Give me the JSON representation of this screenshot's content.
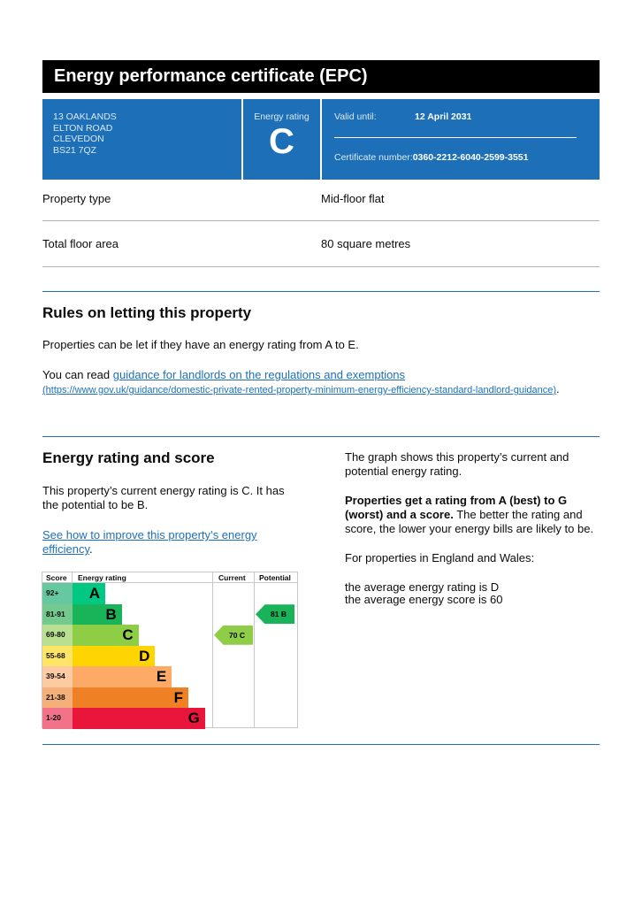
{
  "title": "Energy performance certificate (EPC)",
  "address": [
    "13 OAKLANDS",
    "ELTON ROAD",
    "CLEVEDON",
    "BS21 7QZ"
  ],
  "energy_rating_label": "Energy rating",
  "energy_rating": "C",
  "valid_until_label": "Valid until:",
  "valid_until": "12 April 2031",
  "certificate_number_label": "Certificate number:",
  "certificate_number": "0360-2212-6040-2599-3551",
  "property": [
    {
      "label": "Property type",
      "value": "Mid-floor flat"
    },
    {
      "label": "Total floor area",
      "value": "80 square metres"
    }
  ],
  "letting": {
    "heading": "Rules on letting this property",
    "p1": "Properties can be let if they have an energy rating from A to E.",
    "p2_prefix": "You can read ",
    "p2_link": "guidance for landlords on the regulations and exemptions",
    "p2_url": "(https://www.gov.uk/guidance/domestic-private-rented-property-minimum-energy-efficiency-standard-landlord-guidance)",
    "p2_suffix": "."
  },
  "score": {
    "heading": "Energy rating and score",
    "p1": "This property’s current energy rating is C. It has the potential to be B.",
    "link": "See how to improve this property’s energy efficiency",
    "link_suffix": ".",
    "right_p1": "The graph shows this property’s current and potential energy rating.",
    "right_p2_bold": "Properties get a rating from A (best) to G (worst) and a score.",
    "right_p2_rest": " The better the rating and score, the lower your energy bills are likely to be.",
    "right_p3": "For properties in England and Wales:",
    "right_p4a": "the average energy rating is D",
    "right_p4b": "the average energy score is 60"
  },
  "chart_data": {
    "type": "bar",
    "headers": {
      "score": "Score",
      "rating": "Energy rating",
      "current": "Current",
      "potential": "Potential"
    },
    "bands": [
      {
        "letter": "A",
        "range": "92+",
        "color": "#00c781",
        "light": "#66c8a0"
      },
      {
        "letter": "B",
        "range": "81-91",
        "color": "#19b459",
        "light": "#74c98f"
      },
      {
        "letter": "C",
        "range": "69-80",
        "color": "#8dce46",
        "light": "#b9e090"
      },
      {
        "letter": "D",
        "range": "55-68",
        "color": "#ffd500",
        "light": "#ffe566"
      },
      {
        "letter": "E",
        "range": "39-54",
        "color": "#fcaa65",
        "light": "#fdcba2"
      },
      {
        "letter": "F",
        "range": "21-38",
        "color": "#ef8023",
        "light": "#f5b07a"
      },
      {
        "letter": "G",
        "range": "1-20",
        "color": "#e9153b",
        "light": "#f27289"
      }
    ],
    "current": {
      "score": 70,
      "letter": "C",
      "label": "70  C",
      "color": "#8dce46"
    },
    "potential": {
      "score": 81,
      "letter": "B",
      "label": "81  B",
      "color": "#19b459"
    }
  }
}
